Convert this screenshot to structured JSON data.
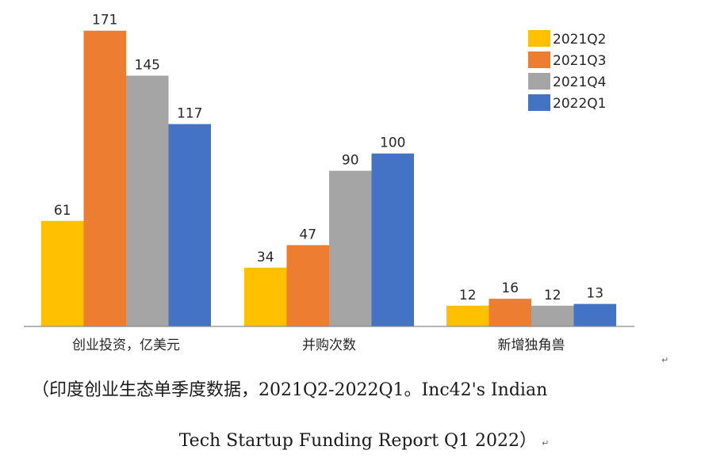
{
  "chart_data": {
    "type": "bar",
    "title": "",
    "xlabel": "",
    "ylabel": "",
    "ylim": [
      0,
      175
    ],
    "grid": false,
    "legend_position": "top-right",
    "categories": [
      "创业投资，亿美元",
      "并购次数",
      "新增独角兽"
    ],
    "series": [
      {
        "name": "2021Q2",
        "values": [
          61,
          34,
          12
        ],
        "color": "#FFC000"
      },
      {
        "name": "2021Q3",
        "values": [
          171,
          47,
          16
        ],
        "color": "#ED7D31"
      },
      {
        "name": "2021Q4",
        "values": [
          145,
          90,
          12
        ],
        "color": "#A5A5A5"
      },
      {
        "name": "2022Q1",
        "values": [
          117,
          100,
          13
        ],
        "color": "#4472C4"
      }
    ]
  },
  "caption": {
    "line1": "（印度创业生态单季度数据，2021Q2-2022Q1。Inc42's Indian",
    "line2": "Tech Startup Funding Report Q1 2022）",
    "paragraph_mark": "↵"
  }
}
